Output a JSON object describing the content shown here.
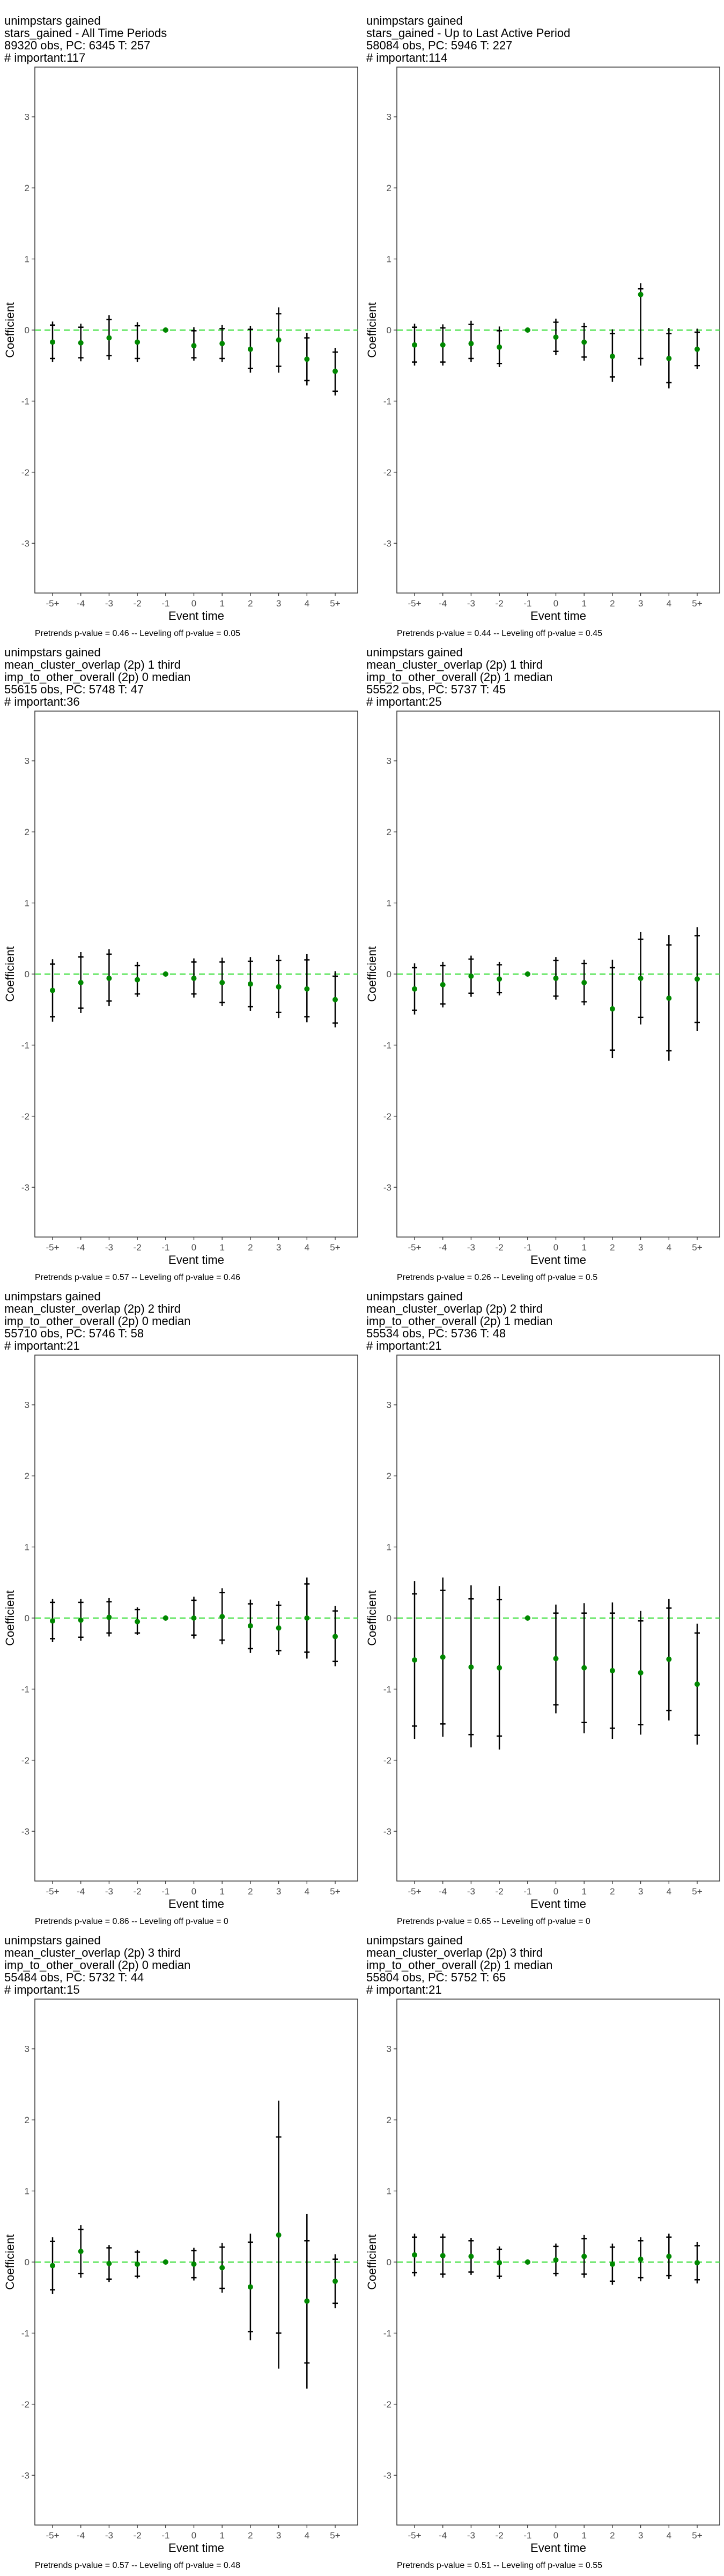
{
  "common": {
    "ylabel": "Coefficient",
    "xlabel": "Event time",
    "yticks": [
      "-3",
      "-2",
      "-1",
      "0",
      "1",
      "2",
      "3"
    ],
    "xticks": [
      "-5+",
      "-4",
      "-3",
      "-2",
      "-1",
      "0",
      "1",
      "2",
      "3",
      "4",
      "5+"
    ],
    "zero_line_color": "#33dd33",
    "point_color": "#008800"
  },
  "panels": [
    {
      "title": [
        " unimpstars gained",
        "stars_gained - All Time Periods",
        "89320 obs, PC: 6345 T: 257",
        "# important:117"
      ],
      "footer": "Pretrends p-value = 0.46 -- Leveling off p-value = 0.05"
    },
    {
      "title": [
        " unimpstars gained",
        "stars_gained - Up to Last Active Period",
        "58084 obs, PC: 5946 T: 227",
        "# important:114"
      ],
      "footer": "Pretrends p-value = 0.44 -- Leveling off p-value = 0.45"
    },
    {
      "title": [
        " unimpstars gained",
        "mean_cluster_overlap (2p) 1 third",
        "imp_to_other_overall (2p) 0 median",
        "55615 obs, PC: 5748 T: 47",
        "# important:36"
      ],
      "footer": "Pretrends p-value = 0.57 -- Leveling off p-value = 0.46"
    },
    {
      "title": [
        " unimpstars gained",
        "mean_cluster_overlap (2p) 1 third",
        "imp_to_other_overall (2p) 1 median",
        "55522 obs, PC: 5737 T: 45",
        "# important:25"
      ],
      "footer": "Pretrends p-value = 0.26 -- Leveling off p-value = 0.5"
    },
    {
      "title": [
        " unimpstars gained",
        "mean_cluster_overlap (2p) 2 third",
        "imp_to_other_overall (2p) 0 median",
        "55710 obs, PC: 5746 T: 58",
        "# important:21"
      ],
      "footer": "Pretrends p-value = 0.86 -- Leveling off p-value = 0"
    },
    {
      "title": [
        " unimpstars gained",
        "mean_cluster_overlap (2p) 2 third",
        "imp_to_other_overall (2p) 1 median",
        "55534 obs, PC: 5736 T: 48",
        "# important:21"
      ],
      "footer": "Pretrends p-value = 0.65 -- Leveling off p-value = 0"
    },
    {
      "title": [
        " unimpstars gained",
        "mean_cluster_overlap (2p) 3 third",
        "imp_to_other_overall (2p) 0 median",
        "55484 obs, PC: 5732 T: 44",
        "# important:15"
      ],
      "footer": "Pretrends p-value = 0.57 -- Leveling off p-value = 0.48"
    },
    {
      "title": [
        " unimpstars gained",
        "mean_cluster_overlap (2p) 3 third",
        "imp_to_other_overall (2p) 1 median",
        "55804 obs, PC: 5752 T: 65",
        "# important:21"
      ],
      "footer": "Pretrends p-value = 0.51 -- Leveling off p-value = 0.55"
    }
  ],
  "chart_data": [
    {
      "type": "scatter",
      "title": " unimpstars gained\nstars_gained - All Time Periods\n89320 obs, PC: 6345 T: 257\n# important:117",
      "xlabel": "Event time",
      "ylabel": "Coefficient",
      "ylim": [
        -3.7,
        3.7
      ],
      "grid": false,
      "x": [
        "-5+",
        "-4",
        "-3",
        "-2",
        "-1",
        "0",
        "1",
        "2",
        "3",
        "4",
        "5+"
      ],
      "y": [
        -0.17,
        -0.18,
        -0.11,
        -0.17,
        0.0,
        -0.22,
        -0.19,
        -0.27,
        -0.14,
        -0.41,
        -0.58
      ],
      "ci95_low": [
        -0.45,
        -0.44,
        -0.42,
        -0.45,
        0.0,
        -0.43,
        -0.45,
        -0.6,
        -0.6,
        -0.78,
        -0.92
      ],
      "ci95_high": [
        0.12,
        0.09,
        0.21,
        0.11,
        0.0,
        0.04,
        0.07,
        0.06,
        0.32,
        -0.04,
        -0.25
      ],
      "ci90_low": [
        -0.4,
        -0.39,
        -0.36,
        -0.4,
        0.0,
        -0.39,
        -0.4,
        -0.54,
        -0.51,
        -0.71,
        -0.86
      ],
      "ci90_high": [
        0.07,
        0.04,
        0.15,
        0.06,
        0.0,
        -0.01,
        0.02,
        0.01,
        0.23,
        -0.11,
        -0.31
      ]
    },
    {
      "type": "scatter",
      "title": " unimpstars gained\nstars_gained - Up to Last Active Period\n58084 obs, PC: 5946 T: 227\n# important:114",
      "xlabel": "Event time",
      "ylabel": "Coefficient",
      "ylim": [
        -3.7,
        3.7
      ],
      "grid": false,
      "x": [
        "-5+",
        "-4",
        "-3",
        "-2",
        "-1",
        "0",
        "1",
        "2",
        "3",
        "4",
        "5+"
      ],
      "y": [
        -0.21,
        -0.21,
        -0.19,
        -0.24,
        0.0,
        -0.1,
        -0.17,
        -0.37,
        0.5,
        -0.4,
        -0.27
      ],
      "ci95_low": [
        -0.5,
        -0.5,
        -0.45,
        -0.52,
        0.0,
        -0.35,
        -0.43,
        -0.73,
        -0.5,
        -0.82,
        -0.55
      ],
      "ci95_high": [
        0.09,
        0.08,
        0.13,
        0.05,
        0.0,
        0.16,
        0.1,
        0.01,
        0.66,
        0.03,
        0.02
      ],
      "ci90_low": [
        -0.45,
        -0.45,
        -0.4,
        -0.47,
        0.0,
        -0.3,
        -0.38,
        -0.66,
        -0.4,
        -0.74,
        -0.5
      ],
      "ci90_high": [
        0.04,
        0.03,
        0.08,
        -0.01,
        0.0,
        0.11,
        0.05,
        -0.05,
        0.58,
        -0.05,
        -0.03
      ]
    },
    {
      "type": "scatter",
      "title": " unimpstars gained\nmean_cluster_overlap (2p) 1 third\nimp_to_other_overall (2p) 0 median\n55615 obs, PC: 5748 T: 47\n# important:36",
      "xlabel": "Event time",
      "ylabel": "Coefficient",
      "ylim": [
        -3.7,
        3.7
      ],
      "grid": false,
      "x": [
        "-5+",
        "-4",
        "-3",
        "-2",
        "-1",
        "0",
        "1",
        "2",
        "3",
        "4",
        "5+"
      ],
      "y": [
        -0.23,
        -0.12,
        -0.06,
        -0.08,
        0.0,
        -0.06,
        -0.12,
        -0.14,
        -0.18,
        -0.21,
        -0.36
      ],
      "ci95_low": [
        -0.67,
        -0.55,
        -0.45,
        -0.32,
        0.0,
        -0.33,
        -0.45,
        -0.52,
        -0.62,
        -0.68,
        -0.75
      ],
      "ci95_high": [
        0.21,
        0.31,
        0.35,
        0.17,
        0.0,
        0.22,
        0.23,
        0.24,
        0.27,
        0.28,
        0.04
      ],
      "ci90_low": [
        -0.6,
        -0.48,
        -0.38,
        -0.28,
        0.0,
        -0.28,
        -0.4,
        -0.46,
        -0.54,
        -0.6,
        -0.69
      ],
      "ci90_high": [
        0.14,
        0.24,
        0.28,
        0.12,
        0.0,
        0.17,
        0.17,
        0.18,
        0.19,
        0.2,
        -0.03
      ]
    },
    {
      "type": "scatter",
      "title": " unimpstars gained\nmean_cluster_overlap (2p) 1 third\nimp_to_other_overall (2p) 1 median\n55522 obs, PC: 5737 T: 45\n# important:25",
      "xlabel": "Event time",
      "ylabel": "Coefficient",
      "ylim": [
        -3.7,
        3.7
      ],
      "grid": false,
      "x": [
        "-5+",
        "-4",
        "-3",
        "-2",
        "-1",
        "0",
        "1",
        "2",
        "3",
        "4",
        "5+"
      ],
      "y": [
        -0.21,
        -0.15,
        -0.03,
        -0.07,
        0.0,
        -0.06,
        -0.12,
        -0.49,
        -0.06,
        -0.34,
        -0.07
      ],
      "ci95_low": [
        -0.57,
        -0.47,
        -0.32,
        -0.3,
        0.0,
        -0.36,
        -0.44,
        -1.18,
        -0.71,
        -1.22,
        -0.8
      ],
      "ci95_high": [
        0.15,
        0.17,
        0.26,
        0.17,
        0.0,
        0.24,
        0.2,
        0.2,
        0.59,
        0.55,
        0.66
      ],
      "ci90_low": [
        -0.51,
        -0.42,
        -0.27,
        -0.26,
        0.0,
        -0.31,
        -0.39,
        -1.07,
        -0.61,
        -1.08,
        -0.68
      ],
      "ci90_high": [
        0.09,
        0.12,
        0.21,
        0.13,
        0.0,
        0.19,
        0.15,
        0.09,
        0.49,
        0.41,
        0.54
      ]
    },
    {
      "type": "scatter",
      "title": " unimpstars gained\nmean_cluster_overlap (2p) 2 third\nimp_to_other_overall (2p) 0 median\n55710 obs, PC: 5746 T: 58\n# important:21",
      "xlabel": "Event time",
      "ylabel": "Coefficient",
      "ylim": [
        -3.7,
        3.7
      ],
      "grid": false,
      "x": [
        "-5+",
        "-4",
        "-3",
        "-2",
        "-1",
        "0",
        "1",
        "2",
        "3",
        "4",
        "5+"
      ],
      "y": [
        -0.04,
        -0.03,
        0.01,
        -0.05,
        0.0,
        0.0,
        0.02,
        -0.11,
        -0.14,
        0.0,
        -0.26
      ],
      "ci95_low": [
        -0.34,
        -0.32,
        -0.26,
        -0.24,
        0.0,
        -0.29,
        -0.37,
        -0.49,
        -0.52,
        -0.57,
        -0.68
      ],
      "ci95_high": [
        0.27,
        0.27,
        0.28,
        0.15,
        0.0,
        0.3,
        0.42,
        0.26,
        0.24,
        0.57,
        0.17
      ],
      "ci90_low": [
        -0.29,
        -0.27,
        -0.21,
        -0.21,
        0.0,
        -0.24,
        -0.31,
        -0.43,
        -0.46,
        -0.48,
        -0.61
      ],
      "ci90_high": [
        0.22,
        0.22,
        0.23,
        0.12,
        0.0,
        0.25,
        0.36,
        0.2,
        0.18,
        0.48,
        0.1
      ]
    },
    {
      "type": "scatter",
      "title": " unimpstars gained\nmean_cluster_overlap (2p) 2 third\nimp_to_other_overall (2p) 1 median\n55534 obs, PC: 5736 T: 48\n# important:21",
      "xlabel": "Event time",
      "ylabel": "Coefficient",
      "ylim": [
        -3.7,
        3.7
      ],
      "grid": false,
      "x": [
        "-5+",
        "-4",
        "-3",
        "-2",
        "-1",
        "0",
        "1",
        "2",
        "3",
        "4",
        "5+"
      ],
      "y": [
        -0.59,
        -0.55,
        -0.69,
        -0.7,
        0.0,
        -0.57,
        -0.7,
        -0.74,
        -0.77,
        -0.58,
        -0.93
      ],
      "ci95_low": [
        -1.7,
        -1.67,
        -1.82,
        -1.85,
        0.0,
        -1.34,
        -1.62,
        -1.7,
        -1.64,
        -1.44,
        -1.78
      ],
      "ci95_high": [
        0.52,
        0.57,
        0.46,
        0.45,
        0.0,
        0.19,
        0.21,
        0.22,
        0.1,
        0.27,
        -0.08
      ],
      "ci90_low": [
        -1.52,
        -1.49,
        -1.64,
        -1.66,
        0.0,
        -1.22,
        -1.47,
        -1.55,
        -1.5,
        -1.3,
        -1.65
      ],
      "ci90_high": [
        0.34,
        0.39,
        0.27,
        0.26,
        0.0,
        0.07,
        0.07,
        0.07,
        -0.04,
        0.14,
        -0.21
      ]
    },
    {
      "type": "scatter",
      "title": " unimpstars gained\nmean_cluster_overlap (2p) 3 third\nimp_to_other_overall (2p) 0 median\n55484 obs, PC: 5732 T: 44\n# important:15",
      "xlabel": "Event time",
      "ylabel": "Coefficient",
      "ylim": [
        -3.7,
        3.7
      ],
      "grid": false,
      "x": [
        "-5+",
        "-4",
        "-3",
        "-2",
        "-1",
        "0",
        "1",
        "2",
        "3",
        "4",
        "5+"
      ],
      "y": [
        -0.05,
        0.15,
        -0.02,
        -0.03,
        0.0,
        -0.03,
        -0.08,
        -0.35,
        0.38,
        -0.55,
        -0.27
      ],
      "ci95_low": [
        -0.45,
        -0.22,
        -0.28,
        -0.23,
        0.0,
        -0.26,
        -0.43,
        -1.1,
        -1.5,
        -1.78,
        -0.65
      ],
      "ci95_high": [
        0.35,
        0.52,
        0.24,
        0.17,
        0.0,
        0.2,
        0.27,
        0.4,
        2.27,
        0.68,
        0.11
      ],
      "ci90_low": [
        -0.39,
        -0.16,
        -0.24,
        -0.2,
        0.0,
        -0.22,
        -0.37,
        -0.98,
        -1.0,
        -1.42,
        -0.58
      ],
      "ci90_high": [
        0.29,
        0.46,
        0.2,
        0.14,
        0.0,
        0.16,
        0.21,
        0.28,
        1.76,
        0.3,
        0.04
      ]
    },
    {
      "type": "scatter",
      "title": " unimpstars gained\nmean_cluster_overlap (2p) 3 third\nimp_to_other_overall (2p) 1 median\n55804 obs, PC: 5752 T: 65\n# important:21",
      "xlabel": "Event time",
      "ylabel": "Coefficient",
      "ylim": [
        -3.7,
        3.7
      ],
      "grid": false,
      "x": [
        "-5+",
        "-4",
        "-3",
        "-2",
        "-1",
        "0",
        "1",
        "2",
        "3",
        "4",
        "5+"
      ],
      "y": [
        0.1,
        0.09,
        0.08,
        -0.01,
        0.0,
        0.03,
        0.08,
        -0.03,
        0.04,
        0.08,
        -0.01
      ],
      "ci95_low": [
        -0.2,
        -0.22,
        -0.18,
        -0.24,
        0.0,
        -0.2,
        -0.22,
        -0.32,
        -0.27,
        -0.24,
        -0.3
      ],
      "ci95_high": [
        0.4,
        0.4,
        0.34,
        0.22,
        0.0,
        0.26,
        0.38,
        0.26,
        0.35,
        0.4,
        0.28
      ],
      "ci90_low": [
        -0.15,
        -0.17,
        -0.14,
        -0.2,
        0.0,
        -0.16,
        -0.17,
        -0.27,
        -0.22,
        -0.19,
        -0.25
      ],
      "ci90_high": [
        0.35,
        0.35,
        0.3,
        0.18,
        0.0,
        0.22,
        0.33,
        0.21,
        0.3,
        0.35,
        0.23
      ]
    }
  ]
}
